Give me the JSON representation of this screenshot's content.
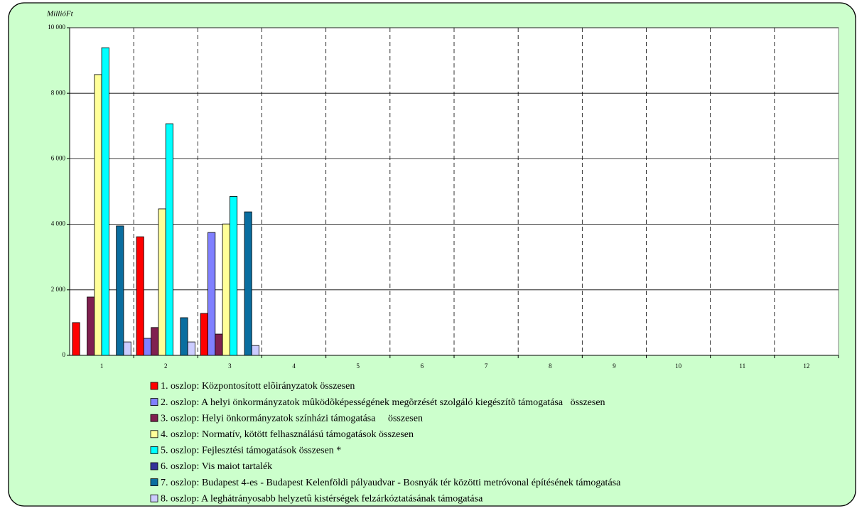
{
  "chart_data": {
    "type": "bar",
    "y_label": "MillióFt",
    "categories": [
      "1",
      "2",
      "3",
      "4",
      "5",
      "6",
      "7",
      "8",
      "9",
      "10",
      "11",
      "12"
    ],
    "series": [
      {
        "name": "1. oszlop: Központosított elõirányzatok összesen",
        "color": "#ff0000",
        "values": [
          1000,
          3620,
          1280,
          null,
          null,
          null,
          null,
          null,
          null,
          null,
          null,
          null
        ]
      },
      {
        "name": "2. oszlop: A helyi önkormányzatok mûködõképességének megõrzését szolgáló kiegészítõ támogatása   összesen",
        "color": "#8080ff",
        "values": [
          0,
          520,
          3750,
          null,
          null,
          null,
          null,
          null,
          null,
          null,
          null,
          null
        ]
      },
      {
        "name": "3. oszlop: Helyi önkormányzatok színházi támogatása     összesen",
        "color": "#802050",
        "values": [
          1780,
          850,
          650,
          null,
          null,
          null,
          null,
          null,
          null,
          null,
          null,
          null
        ]
      },
      {
        "name": "4. oszlop: Normatív, kötött felhasználású támogatások összesen",
        "color": "#ffff99",
        "values": [
          8570,
          4470,
          4010,
          null,
          null,
          null,
          null,
          null,
          null,
          null,
          null,
          null
        ]
      },
      {
        "name": "5. oszlop: Fejlesztési támogatások összesen *",
        "color": "#00ffff",
        "values": [
          9390,
          7070,
          4850,
          null,
          null,
          null,
          null,
          null,
          null,
          null,
          null,
          null
        ]
      },
      {
        "name": "6. oszlop: Vis maiot tartalék",
        "color": "#333399",
        "values": [
          0,
          0,
          0,
          null,
          null,
          null,
          null,
          null,
          null,
          null,
          null,
          null
        ]
      },
      {
        "name": "7. oszlop: Budapest 4-es - Budapest Kelenföldi pályaudvar - Bosnyák tér közötti metróvonal építésének támogatása",
        "color": "#0a6ea0",
        "values": [
          3950,
          1150,
          4380,
          null,
          null,
          null,
          null,
          null,
          null,
          null,
          null,
          null
        ]
      },
      {
        "name": "8. oszlop: A leghátrányosabb helyzetû kistérségek felzárkóztatásának támogatása",
        "color": "#ccccff",
        "values": [
          410,
          410,
          300,
          null,
          null,
          null,
          null,
          null,
          null,
          null,
          null,
          null
        ]
      }
    ],
    "ylim": [
      0,
      10000
    ],
    "yticks": [
      0,
      {
        "value": 2000,
        "label": "2 000"
      },
      {
        "value": 4000,
        "label": "4 000"
      },
      {
        "value": 6000,
        "label": "6 000"
      },
      {
        "value": 8000,
        "label": "8 000"
      },
      {
        "value": 10000,
        "label": "10 000"
      }
    ],
    "grid": true,
    "legend": "bottom"
  }
}
